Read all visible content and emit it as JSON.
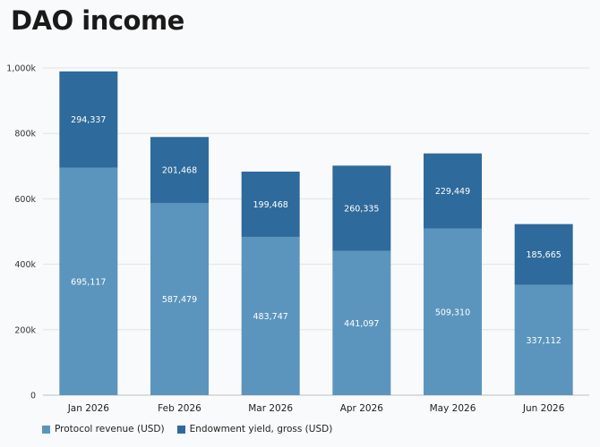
{
  "chart_data": {
    "type": "bar",
    "stacked": true,
    "title": "DAO income",
    "xlabel": "",
    "ylabel": "",
    "categories": [
      "Jan 2026",
      "Feb 2026",
      "Mar 2026",
      "Apr 2026",
      "May 2026",
      "Jun 2026"
    ],
    "series": [
      {
        "name": "Protocol revenue (USD)",
        "color": "#5b95bd",
        "values": [
          695117,
          587479,
          483747,
          441097,
          509310,
          337112
        ],
        "labels": [
          "695,117",
          "587,479",
          "483,747",
          "441,097",
          "509,310",
          "337,112"
        ]
      },
      {
        "name": "Endowment yield, gross (USD)",
        "color": "#2e6a9b",
        "values": [
          294337,
          201468,
          199468,
          260335,
          229449,
          185665
        ],
        "labels": [
          "294,337",
          "201,468",
          "199,468",
          "260,335",
          "229,449",
          "185,665"
        ]
      }
    ],
    "ylim": [
      0,
      1000000
    ],
    "yticks": [
      0,
      200000,
      400000,
      600000,
      800000,
      1000000
    ],
    "ytick_labels": [
      "0",
      "200k",
      "400k",
      "600k",
      "800k",
      "1,000k"
    ],
    "grid": true,
    "legend": "bottom-left"
  }
}
